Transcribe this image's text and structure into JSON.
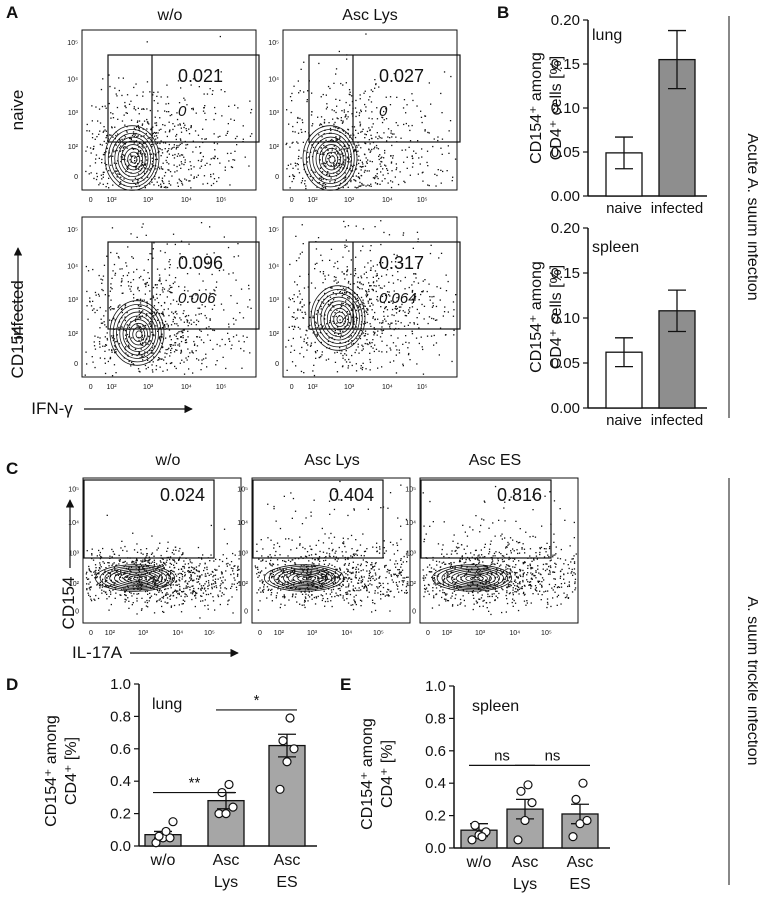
{
  "panels": {
    "A": "A",
    "B": "B",
    "C": "C",
    "D": "D",
    "E": "E"
  },
  "panelA": {
    "col_titles": [
      "w/o",
      "Asc Lys"
    ],
    "row_labels": [
      "naive",
      "infected"
    ],
    "y_marker": "CD154",
    "x_marker": "IFN-γ",
    "tick_labels": [
      "0",
      "10²",
      "10³",
      "10⁴",
      "10⁵"
    ],
    "gates": [
      {
        "name": "naive w/o",
        "value": "0.021",
        "sub": "0"
      },
      {
        "name": "naive Asc Lys",
        "value": "0.027",
        "sub": "0"
      },
      {
        "name": "infected w/o",
        "value": "0.096",
        "sub": "0.006"
      },
      {
        "name": "infected Asc Lys",
        "value": "0.317",
        "sub": "0.064"
      }
    ]
  },
  "panelC": {
    "col_titles": [
      "w/o",
      "Asc Lys",
      "Asc ES"
    ],
    "y_marker": "CD154",
    "x_marker": "IL-17A",
    "tick_labels": [
      "0",
      "10²",
      "10³",
      "10⁴",
      "10⁵"
    ],
    "gates": [
      {
        "name": "w/o",
        "value": "0.024"
      },
      {
        "name": "Asc Lys",
        "value": "0.404"
      },
      {
        "name": "Asc ES",
        "value": "0.816"
      }
    ]
  },
  "side_labels": {
    "acute": "Acute A. suum infection",
    "trickle": "A. suum trickle infection"
  },
  "chart_data": [
    {
      "panel": "B",
      "type": "bar",
      "title": "lung",
      "ylabel": "CD154⁺ among CD4⁺ cells [%]",
      "categories": [
        "naive",
        "infected"
      ],
      "values": [
        0.049,
        0.155
      ],
      "errors": [
        0.018,
        0.033
      ],
      "ylim": [
        0,
        0.2
      ],
      "yticks": [
        "0.00",
        "0.05",
        "0.10",
        "0.15",
        "0.20"
      ],
      "bar_colors": [
        "#ffffff",
        "#8e8e8e"
      ]
    },
    {
      "panel": "B",
      "type": "bar",
      "title": "spleen",
      "ylabel": "CD154⁺ among CD4⁺ cells [%]",
      "categories": [
        "naive",
        "infected"
      ],
      "values": [
        0.062,
        0.108
      ],
      "errors": [
        0.016,
        0.023
      ],
      "ylim": [
        0,
        0.2
      ],
      "yticks": [
        "0.00",
        "0.05",
        "0.10",
        "0.15",
        "0.20"
      ],
      "bar_colors": [
        "#ffffff",
        "#8e8e8e"
      ]
    },
    {
      "panel": "D",
      "type": "bar",
      "title": "lung",
      "ylabel": "CD154⁺ among CD4⁺ [%]",
      "categories": [
        "w/o",
        "Asc Lys",
        "Asc ES"
      ],
      "values": [
        0.07,
        0.28,
        0.62
      ],
      "errors": [
        0.02,
        0.05,
        0.07
      ],
      "points": [
        [
          0.02,
          0.05,
          0.05,
          0.06,
          0.09,
          0.15
        ],
        [
          0.2,
          0.2,
          0.24,
          0.33,
          0.38
        ],
        [
          0.35,
          0.52,
          0.6,
          0.65,
          0.79
        ]
      ],
      "ylim": [
        0,
        1.0
      ],
      "yticks": [
        "0.0",
        "0.2",
        "0.4",
        "0.6",
        "0.8",
        "1.0"
      ],
      "significance": [
        {
          "from": 0,
          "to": 1,
          "label": "**"
        },
        {
          "from": 1,
          "to": 2,
          "label": "*"
        }
      ],
      "bar_color": "#a6a6a6"
    },
    {
      "panel": "E",
      "type": "bar",
      "title": "spleen",
      "ylabel": "CD154⁺ among CD4⁺ [%]",
      "categories": [
        "w/o",
        "Asc Lys",
        "Asc ES"
      ],
      "values": [
        0.11,
        0.24,
        0.21
      ],
      "errors": [
        0.04,
        0.06,
        0.06
      ],
      "points": [
        [
          0.05,
          0.08,
          0.1,
          0.14,
          0.07
        ],
        [
          0.05,
          0.17,
          0.28,
          0.35,
          0.39
        ],
        [
          0.07,
          0.15,
          0.17,
          0.3,
          0.4
        ]
      ],
      "ylim": [
        0,
        1.0
      ],
      "yticks": [
        "0.0",
        "0.2",
        "0.4",
        "0.6",
        "0.8",
        "1.0"
      ],
      "significance": [
        {
          "from": 0,
          "to": 1,
          "label": "ns"
        },
        {
          "from": 1,
          "to": 2,
          "label": "ns"
        }
      ],
      "bar_color": "#a6a6a6"
    }
  ]
}
